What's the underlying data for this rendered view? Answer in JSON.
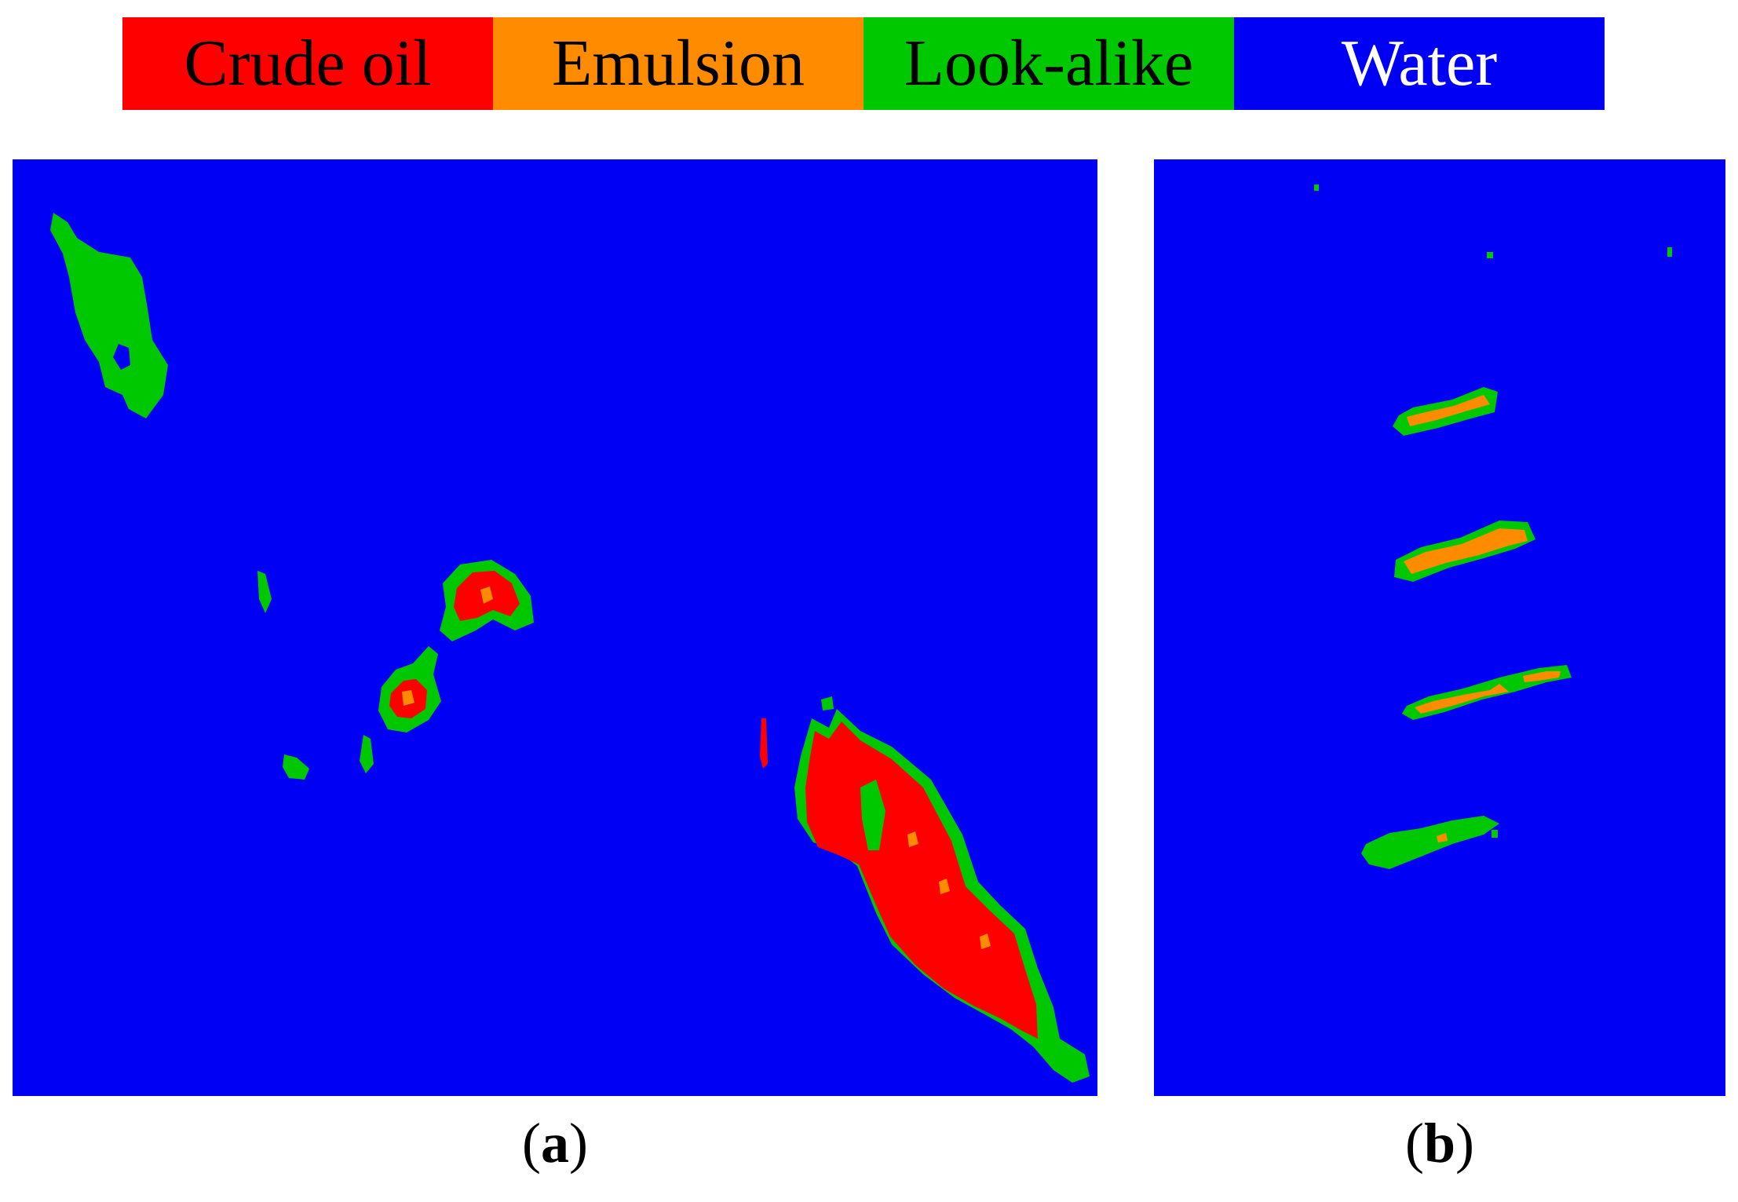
{
  "legend": {
    "items": [
      {
        "label": "Crude oil",
        "color": "#ff0000",
        "text_color": "#000000"
      },
      {
        "label": "Emulsion",
        "color": "#ff8c00",
        "text_color": "#000000"
      },
      {
        "label": "Look-alike",
        "color": "#00c800",
        "text_color": "#000000"
      },
      {
        "label": "Water",
        "color": "#0000f5",
        "text_color": "#ffffff"
      }
    ]
  },
  "panels": [
    {
      "letter": "a"
    },
    {
      "letter": "b"
    }
  ],
  "colors": {
    "water": "#0000f5",
    "look_alike": "#00c800",
    "emulsion": "#ff8c00",
    "crude_oil": "#ff0000"
  }
}
